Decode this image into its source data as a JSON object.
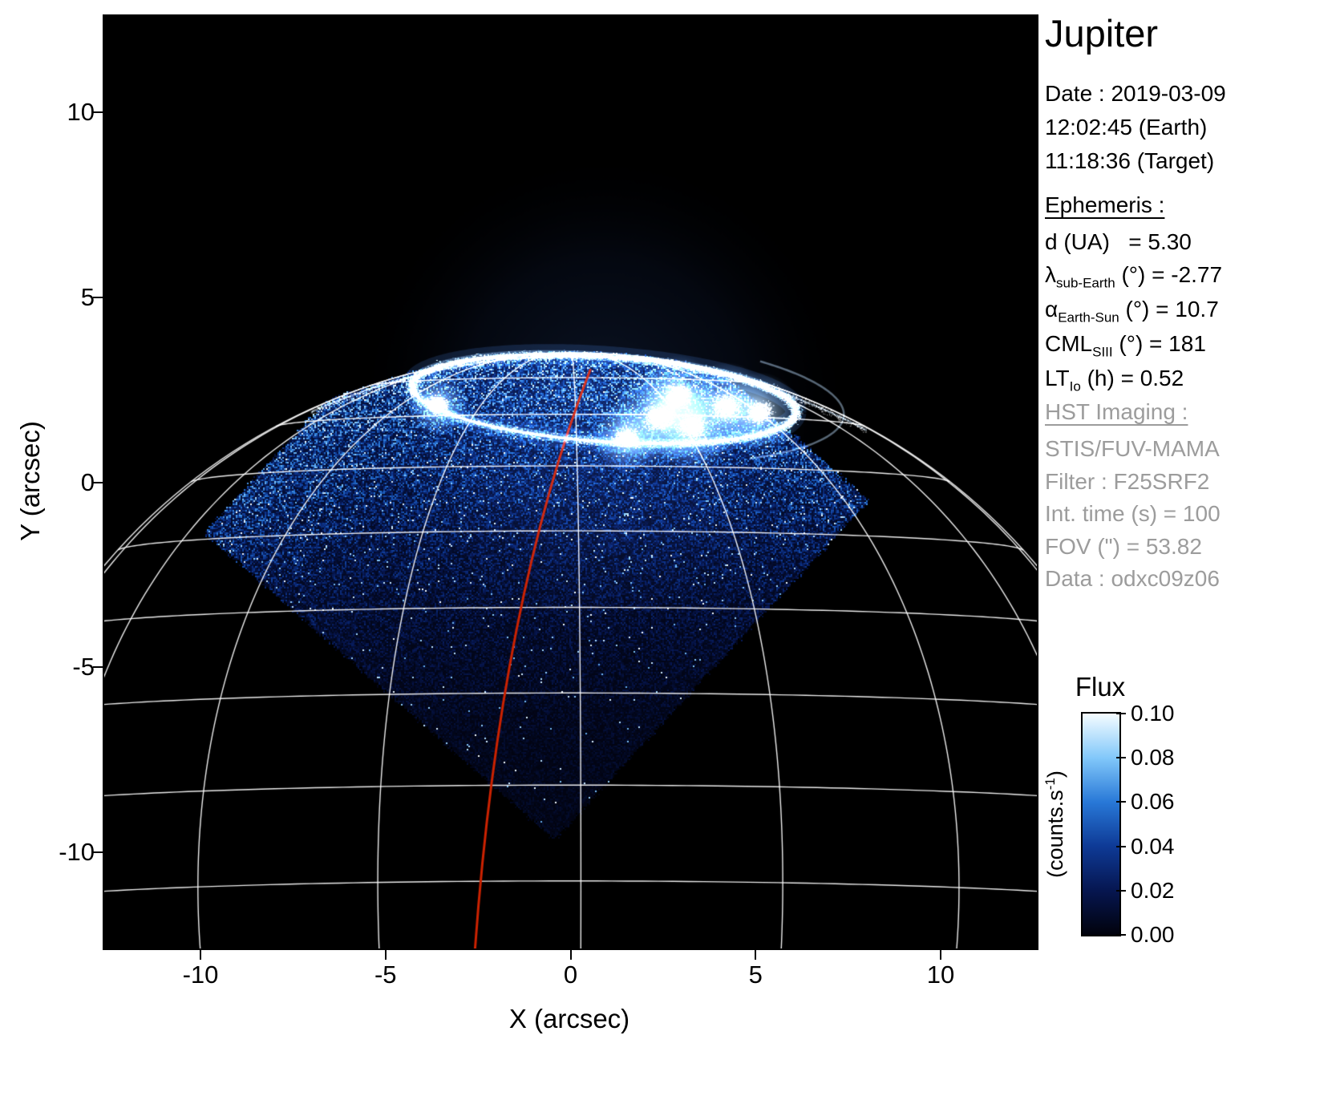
{
  "header": {
    "title": "Jupiter"
  },
  "datetime": {
    "lines": [
      "Date : 2019-03-09",
      "12:02:45 (Earth)",
      "11:18:36 (Target)"
    ]
  },
  "ephemeris": {
    "heading": "Ephemeris :",
    "rows": [
      {
        "base": "d (UA)",
        "sub": "",
        "rest": "   = 5.30"
      },
      {
        "base": "λ",
        "sub": "sub-Earth",
        "rest": " (°) = -2.77"
      },
      {
        "base": "α",
        "sub": "Earth-Sun",
        "rest": " (°) = 10.7"
      },
      {
        "base": "CML",
        "sub": "SIII",
        "rest": " (°) = 181"
      },
      {
        "base": "LT",
        "sub": "Io",
        "rest": " (h) = 0.52"
      }
    ]
  },
  "hst": {
    "heading": "HST Imaging :",
    "rows": [
      "STIS/FUV-MAMA",
      "Filter : F25SRF2",
      "Int. time (s) = 100",
      "FOV (\") = 53.82",
      "Data : odxc09z06"
    ]
  },
  "colors": {
    "page_bg": "#ffffff",
    "plot_bg": "#000000",
    "grid": "#ffffff",
    "red_line": "#cc2200",
    "muted_text": "#9c9c9c",
    "text": "#000000"
  },
  "chart_data": {
    "type": "heatmap",
    "title": "Jupiter",
    "xlabel": "X (arcsec)",
    "ylabel": "Y (arcsec)",
    "xlim": [
      -12.6,
      12.6
    ],
    "ylim": [
      -12.6,
      12.6
    ],
    "x_ticks": [
      "-10",
      "-5",
      "0",
      "5",
      "10"
    ],
    "y_ticks": [
      "10",
      "5",
      "0",
      "-5",
      "-10"
    ],
    "grid_on": true,
    "legend": "none",
    "colorbar": {
      "title": "Flux",
      "unit_pre": "(counts.s",
      "unit_sup": "-1",
      "unit_post": ")",
      "ticks": [
        "0.10",
        "0.08",
        "0.06",
        "0.04",
        "0.02",
        "0.00"
      ],
      "range": [
        0.0,
        0.1
      ],
      "gradient": [
        "#01020c",
        "#061650",
        "#0e3a96",
        "#2878d7",
        "#82c8fa",
        "#f5fcff"
      ]
    },
    "scene": {
      "planet": {
        "cx": 0,
        "cy": -11.5,
        "req": 16.0,
        "rpol": 15.0,
        "subobs_lat_deg": -2.77
      },
      "grid": {
        "lat_step_deg": 10,
        "lon_step_deg": 20,
        "lon_offset_deg": 1,
        "color": "#ffffff"
      },
      "fov_diamond": [
        [
          -9.9,
          -1.36
        ],
        [
          -0.43,
          -9.66
        ],
        [
          8.06,
          -0.5
        ],
        [
          -1.41,
          7.8
        ]
      ],
      "noise": {
        "bottom_ref": -9.8,
        "base_min": 0.05,
        "base_gain": 0.43,
        "gamma": 2.1
      },
      "aurora": {
        "cx": 0.9,
        "cy": 2.25,
        "a": 5.2,
        "b": 1.15,
        "rot_deg": -4,
        "patches": [
          [
            2.4,
            1.75,
            0.55
          ],
          [
            3.3,
            1.5,
            0.5
          ],
          [
            2.9,
            2.35,
            0.45
          ],
          [
            4.2,
            2.05,
            0.5
          ],
          [
            1.5,
            1.2,
            0.4
          ],
          [
            5.1,
            1.9,
            0.45
          ],
          [
            -3.6,
            2.1,
            0.35
          ]
        ]
      },
      "red_meridian": {
        "p0": [
          -2.58,
          -12.6
        ],
        "c": [
          -1.9,
          -3.2
        ],
        "p1": [
          0.54,
          3.06
        ],
        "color": "#cc2200"
      }
    },
    "description": "HST STIS/FUV-MAMA far-UV image of Jupiter's northern aurora on 2019-03-09. Square STIS field of view rotated ~45 deg shown as blue speckled diamond; white planetocentric latitude/longitude graticule over the disk; bright auroral oval near the pole; red line marks the central meridian; flux colorbar 0.00-0.10 counts/s."
  }
}
